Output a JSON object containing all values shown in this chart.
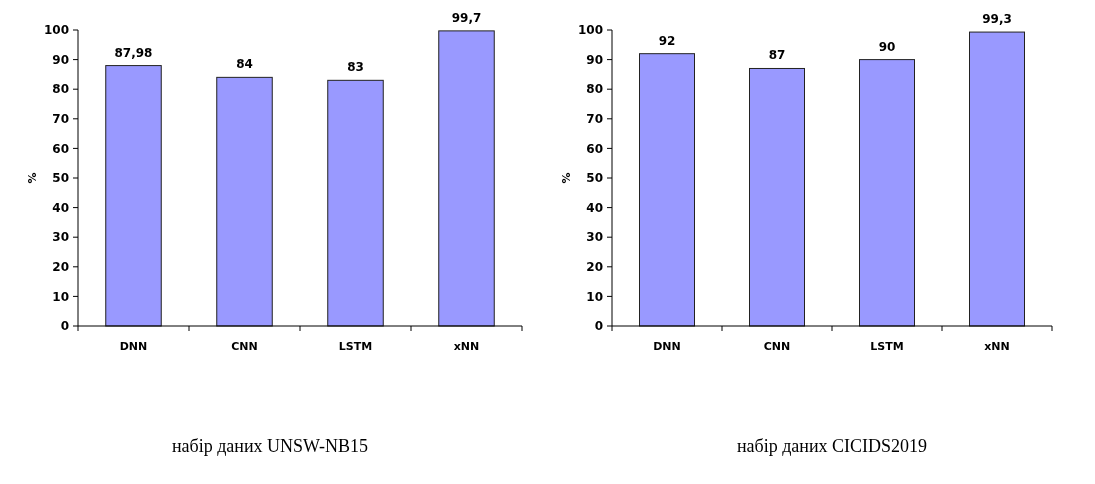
{
  "chart_data": [
    {
      "type": "bar",
      "categories": [
        "DNN",
        "CNN",
        "LSTM",
        "xNN"
      ],
      "values": [
        87.98,
        84,
        83,
        99.7
      ],
      "value_labels": [
        "87,98",
        "84",
        "83",
        "99,7"
      ],
      "color": "#9999ff",
      "ylabel": "%",
      "xlabel": "набір даних UNSW-NB15",
      "ylim": [
        0,
        100
      ],
      "yticks": [
        0,
        10,
        20,
        30,
        40,
        50,
        60,
        70,
        80,
        90,
        100
      ]
    },
    {
      "type": "bar",
      "categories": [
        "DNN",
        "CNN",
        "LSTM",
        "xNN"
      ],
      "values": [
        92,
        87,
        90,
        99.3
      ],
      "value_labels": [
        "92",
        "87",
        "90",
        "99,3"
      ],
      "color": "#9999ff",
      "ylabel": "%",
      "xlabel": "набір даних CICIDS2019",
      "ylim": [
        0,
        100
      ],
      "yticks": [
        0,
        10,
        20,
        30,
        40,
        50,
        60,
        70,
        80,
        90,
        100
      ]
    }
  ]
}
